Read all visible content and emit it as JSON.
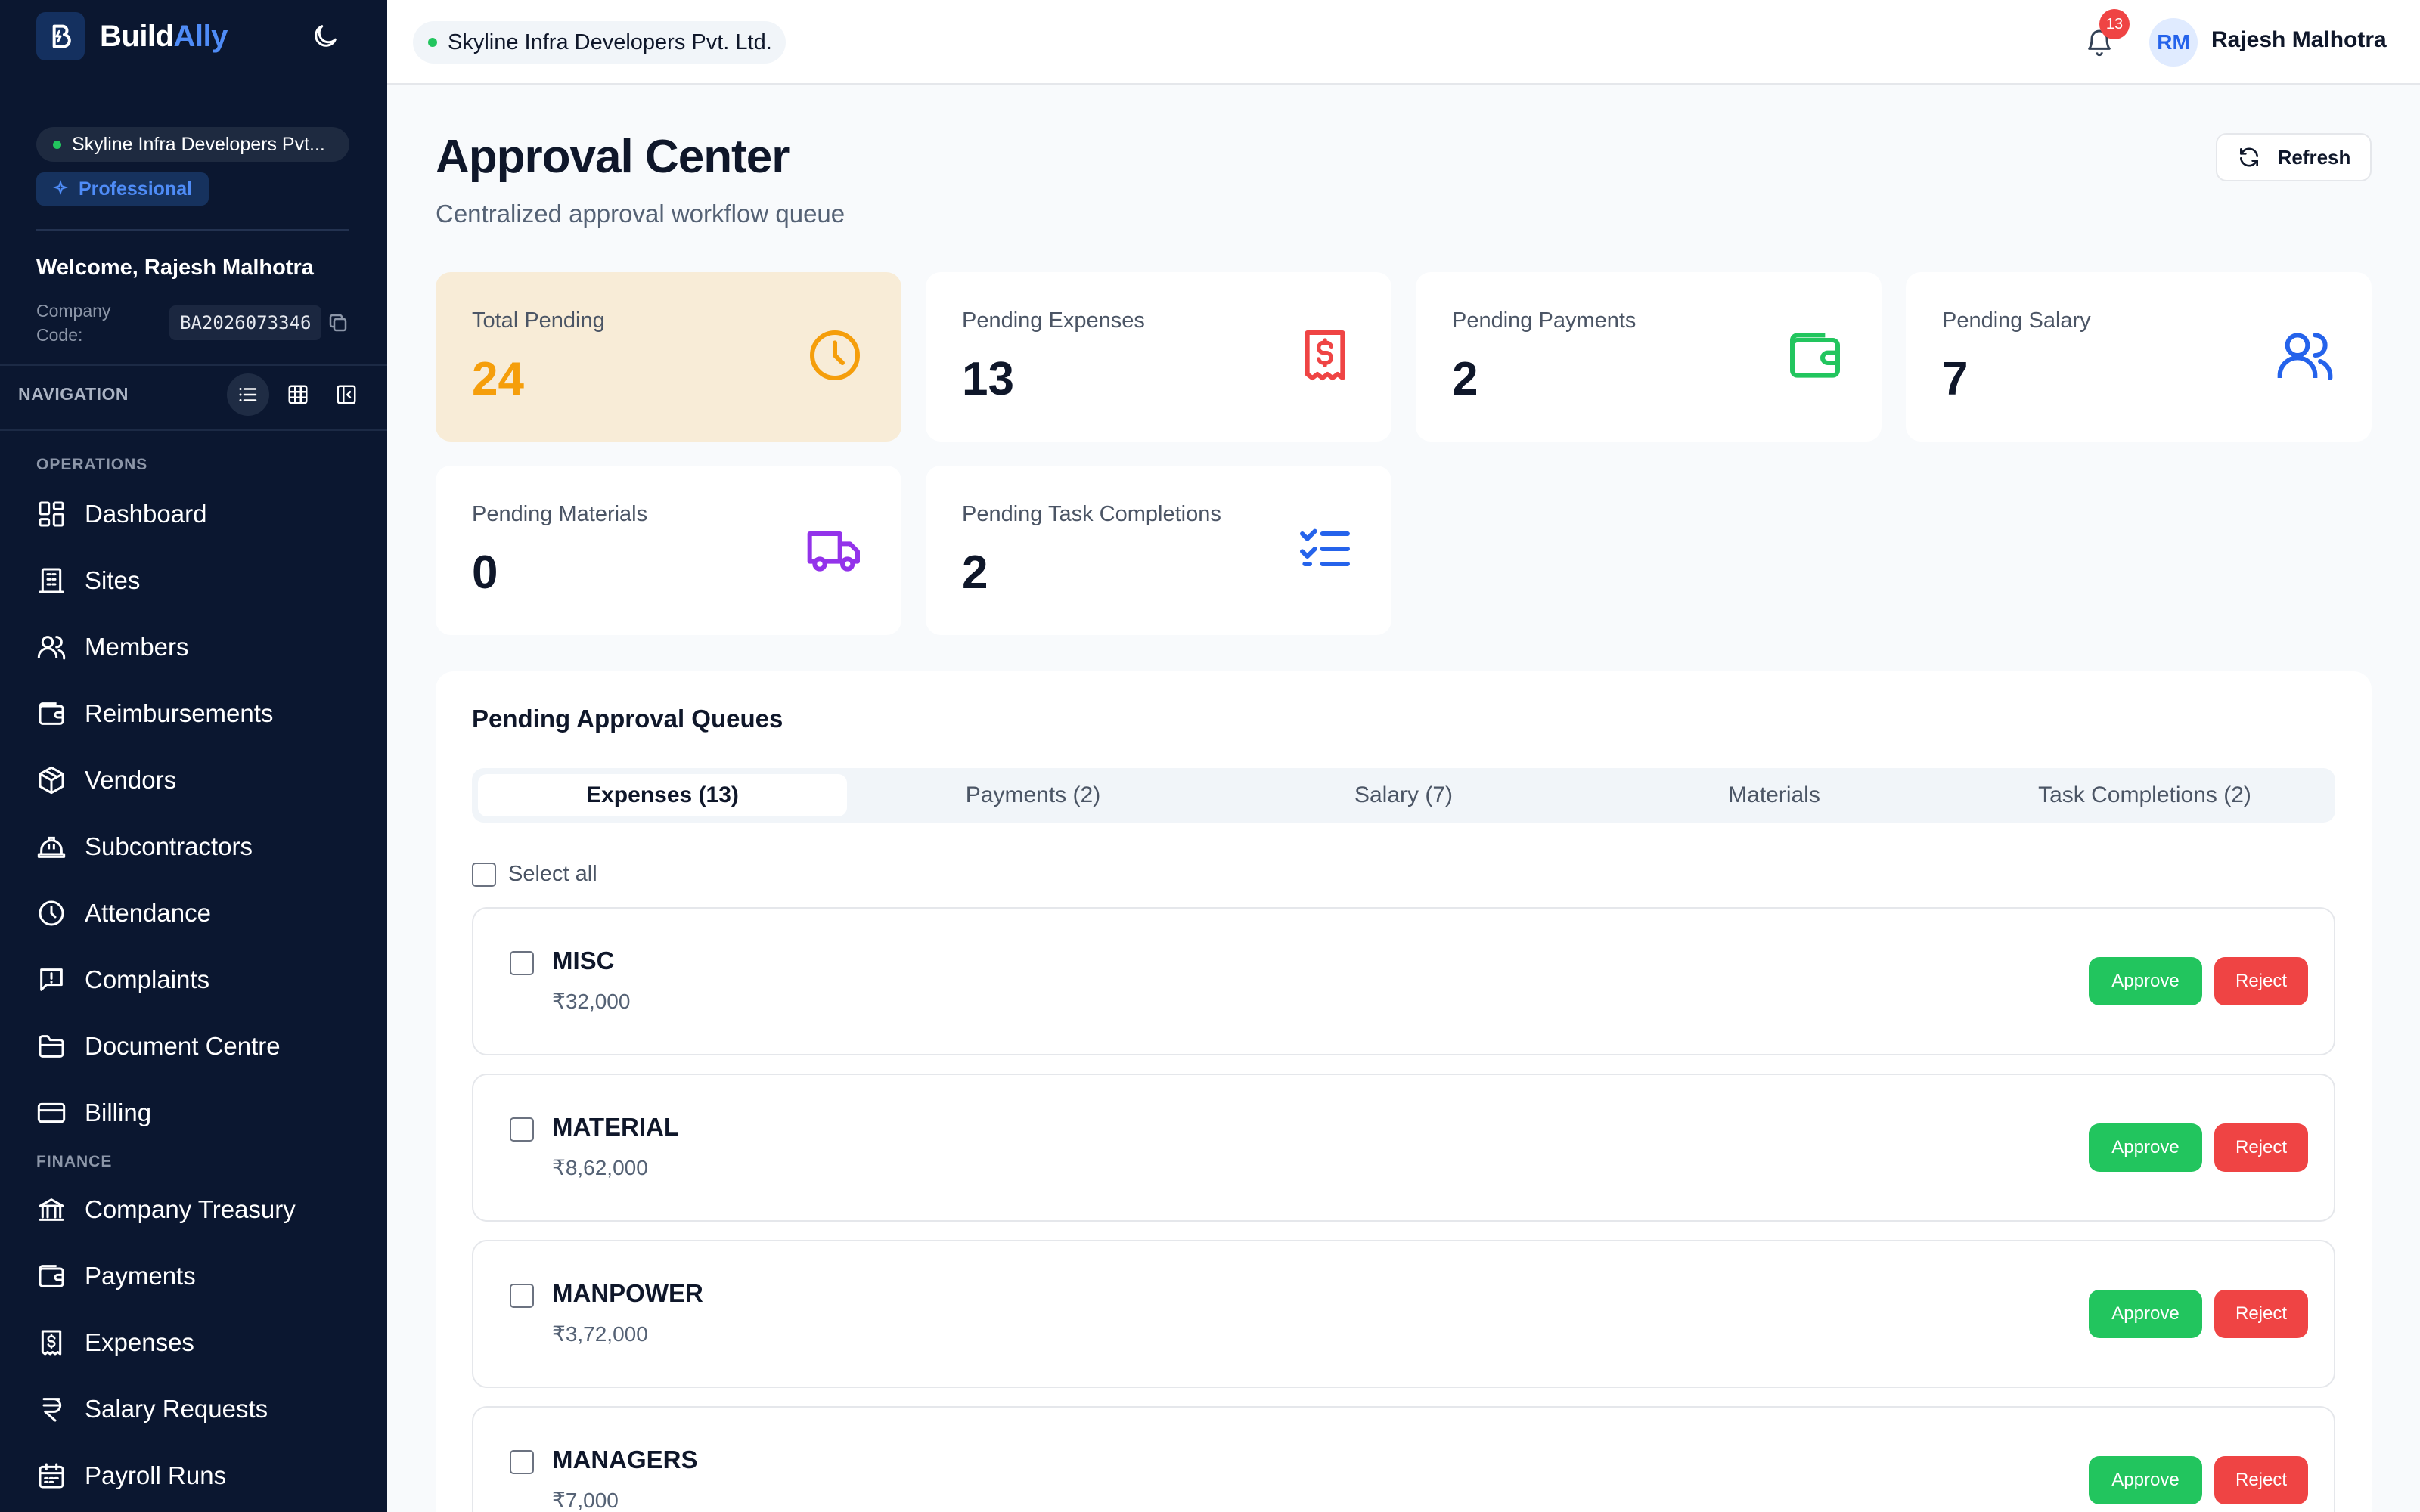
{
  "app": {
    "logo_text": "Build",
    "logo_accent": "Ally",
    "brand_color": "#4f8cf7"
  },
  "sidebar": {
    "company_name": "Skyline Infra Developers Pvt...",
    "plan": "Professional",
    "welcome": "Welcome, Rajesh Malhotra",
    "company_code_label": "Company Code:",
    "company_code": "BA2026073346",
    "nav_header": "NAVIGATION",
    "sections": {
      "operations": "OPERATIONS",
      "finance": "FINANCE"
    },
    "operations_items": [
      {
        "label": "Dashboard",
        "icon": "dashboard-icon"
      },
      {
        "label": "Sites",
        "icon": "building-icon"
      },
      {
        "label": "Members",
        "icon": "users-icon"
      },
      {
        "label": "Reimbursements",
        "icon": "wallet-icon"
      },
      {
        "label": "Vendors",
        "icon": "package-icon"
      },
      {
        "label": "Subcontractors",
        "icon": "hard-hat-icon"
      },
      {
        "label": "Attendance",
        "icon": "clock-icon"
      },
      {
        "label": "Complaints",
        "icon": "message-alert-icon"
      },
      {
        "label": "Document Centre",
        "icon": "folder-icon"
      },
      {
        "label": "Billing",
        "icon": "credit-card-icon"
      }
    ],
    "finance_items": [
      {
        "label": "Company Treasury",
        "icon": "bank-icon"
      },
      {
        "label": "Payments",
        "icon": "wallet-icon"
      },
      {
        "label": "Expenses",
        "icon": "receipt-icon"
      },
      {
        "label": "Salary Requests",
        "icon": "rupee-icon"
      },
      {
        "label": "Payroll Runs",
        "icon": "calendar-icon"
      }
    ]
  },
  "topbar": {
    "company_name": "Skyline Infra Developers Pvt. Ltd.",
    "notification_count": "13",
    "user_initials": "RM",
    "user_name": "Rajesh Malhotra"
  },
  "page": {
    "title": "Approval Center",
    "subtitle": "Centralized approval workflow queue",
    "refresh_label": "Refresh"
  },
  "stats": [
    {
      "label": "Total Pending",
      "value": "24",
      "icon": "clock-icon",
      "color": "#f59e0b"
    },
    {
      "label": "Pending Expenses",
      "value": "13",
      "icon": "receipt-icon",
      "color": "#ef4444"
    },
    {
      "label": "Pending Payments",
      "value": "2",
      "icon": "wallet-icon",
      "color": "#22c55e"
    },
    {
      "label": "Pending Salary",
      "value": "7",
      "icon": "users-icon",
      "color": "#2563eb"
    },
    {
      "label": "Pending Materials",
      "value": "0",
      "icon": "truck-icon",
      "color": "#9333ea"
    },
    {
      "label": "Pending Task Completions",
      "value": "2",
      "icon": "list-checks-icon",
      "color": "#2563eb"
    }
  ],
  "queue": {
    "title": "Pending Approval Queues",
    "tabs": [
      "Expenses (13)",
      "Payments (2)",
      "Salary (7)",
      "Materials",
      "Task Completions (2)"
    ],
    "active_tab": "Expenses (13)",
    "select_all_label": "Select all",
    "approve_label": "Approve",
    "reject_label": "Reject",
    "items": [
      {
        "category": "MISC",
        "amount": "₹32,000"
      },
      {
        "category": "MATERIAL",
        "amount": "₹8,62,000"
      },
      {
        "category": "MANPOWER",
        "amount": "₹3,72,000"
      },
      {
        "category": "MANAGERS",
        "amount": "₹7,000"
      }
    ]
  }
}
